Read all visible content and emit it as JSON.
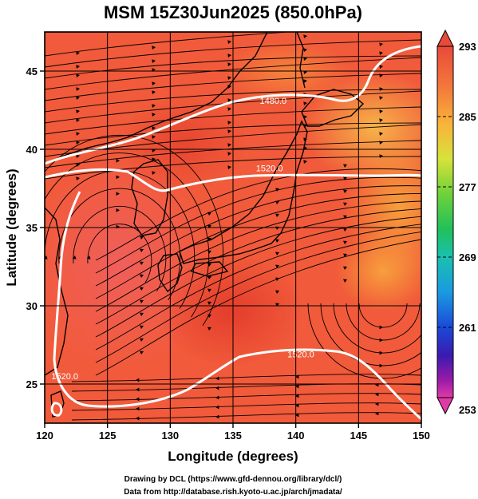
{
  "title": "MSM 15Z30Jun2025 (850.0hPa)",
  "x_axis": {
    "label": "Longitude (degrees)",
    "range": [
      120,
      150
    ],
    "ticks": [
      "120",
      "125",
      "130",
      "135",
      "140",
      "145",
      "150"
    ]
  },
  "y_axis": {
    "label": "Latitude  (degrees)",
    "range": [
      22.5,
      47.5
    ],
    "ticks": [
      "25",
      "30",
      "35",
      "40",
      "45"
    ]
  },
  "contours": [
    {
      "label": "1480.0",
      "lon": 138.2,
      "lat": 42.9
    },
    {
      "label": "1520.0",
      "lon": 137.9,
      "lat": 38.6
    },
    {
      "label": "1520.0",
      "lon": 140.4,
      "lat": 26.7
    },
    {
      "label": "1520.0",
      "lon": 121.6,
      "lat": 25.3
    }
  ],
  "colorbar": {
    "range": [
      253,
      293
    ],
    "labels": [
      "293",
      "285",
      "277",
      "269",
      "261",
      "253"
    ]
  },
  "credits": {
    "line1": "Drawing by DCL (https://www.gfd-dennou.org/library/dcl/)",
    "line2": "Data from http://database.rish.kyoto-u.ac.jp/arch/jmadata/"
  },
  "colors": {
    "field_base": "#f15a3a",
    "field_hot": "#e8432e",
    "field_warm": "#f47a3a",
    "field_orange": "#f8a23c",
    "contour": "#ffffff",
    "streamline": "#000000"
  }
}
